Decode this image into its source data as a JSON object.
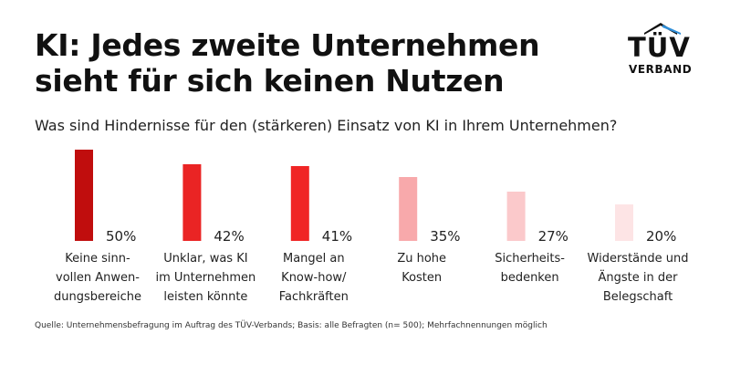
{
  "title": "KI: Jedes zweite Unternehmen sieht für sich keinen Nutzen",
  "logo": {
    "brand": "TÜV",
    "sub": "VERBAND",
    "accent_color": "#2f8ed8"
  },
  "question": "Was sind Hindernisse für den (stärkeren) Einsatz von KI in Ihrem Unternehmen?",
  "source": "Quelle: Unternehmensbefragung im Auftrag des TÜV-Verbands; Basis: alle Befragten (n= 500); Mehrfachnennungen möglich",
  "chart_data": {
    "type": "bar",
    "title": "Was sind Hindernisse für den (stärkeren) Einsatz von KI in Ihrem Unternehmen?",
    "categories": [
      "Keine sinn-\nvollen Anwen-\ndungsbereiche",
      "Unklar, was KI\nim Unternehmen\nleisten könnte",
      "Mangel an\nKnow-how/\nFachkräften",
      "Zu hohe\nKosten",
      "Sicherheits-\nbedenken",
      "Widerstände und\nÄngste in der\nBelegschaft"
    ],
    "values": [
      50,
      42,
      41,
      35,
      27,
      20
    ],
    "value_labels": [
      "50%",
      "42%",
      "41%",
      "35%",
      "27%",
      "20%"
    ],
    "colors": [
      "#c00d0d",
      "#ea2424",
      "#f02525",
      "#f8a9ab",
      "#fbc9cb",
      "#fde4e5"
    ],
    "xlabel": "",
    "ylabel": "",
    "ylim": [
      0,
      50
    ],
    "grid": false,
    "legend": "none"
  }
}
